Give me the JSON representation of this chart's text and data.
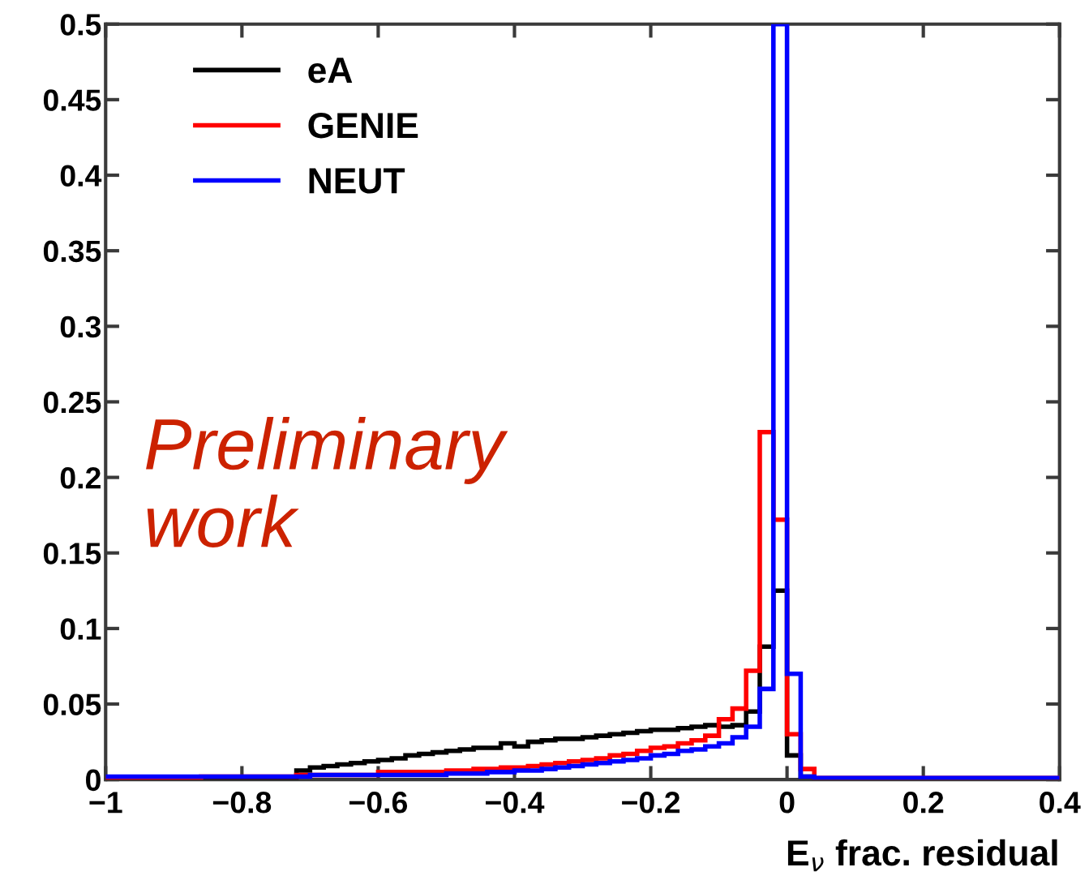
{
  "chart_data": {
    "type": "histogram",
    "xlabel": "E$_{ν}$ frac. residual",
    "bins": [
      -1,
      -0.98,
      -0.96,
      -0.94,
      -0.92,
      -0.9,
      -0.88,
      -0.86,
      -0.84,
      -0.82,
      -0.8,
      -0.78,
      -0.76,
      -0.74,
      -0.72,
      -0.7,
      -0.68,
      -0.66,
      -0.64,
      -0.62,
      -0.6,
      -0.58,
      -0.56,
      -0.54,
      -0.52,
      -0.5,
      -0.48,
      -0.46,
      -0.44,
      -0.42,
      -0.4,
      -0.38,
      -0.36,
      -0.34,
      -0.32,
      -0.3,
      -0.28,
      -0.26,
      -0.24,
      -0.22,
      -0.2,
      -0.18,
      -0.16,
      -0.14,
      -0.12,
      -0.1,
      -0.08,
      -0.06,
      -0.04,
      -0.02,
      0,
      0.02,
      0.04,
      0.06,
      0.08,
      0.1,
      0.12,
      0.14,
      0.16,
      0.18,
      0.2,
      0.22,
      0.24,
      0.26,
      0.28,
      0.3,
      0.32,
      0.34,
      0.36,
      0.38,
      0.4
    ],
    "series": [
      {
        "name": "eA",
        "color": "#000000",
        "values": [
          0.001,
          0.001,
          0.001,
          0.001,
          0.001,
          0.001,
          0.001,
          0.001,
          0.001,
          0.001,
          0.001,
          0.001,
          0.001,
          0.001,
          0.006,
          0.008,
          0.009,
          0.01,
          0.011,
          0.012,
          0.013,
          0.014,
          0.016,
          0.017,
          0.018,
          0.019,
          0.02,
          0.021,
          0.021,
          0.024,
          0.022,
          0.025,
          0.026,
          0.027,
          0.027,
          0.028,
          0.029,
          0.03,
          0.031,
          0.032,
          0.033,
          0.033,
          0.034,
          0.035,
          0.036,
          0.035,
          0.036,
          0.045,
          0.088,
          0.125,
          0.016,
          0.002,
          0,
          0,
          0,
          0,
          0,
          0,
          0,
          0,
          0,
          0,
          0,
          0,
          0,
          0,
          0,
          0,
          0,
          0
        ]
      },
      {
        "name": "GENIE",
        "color": "#ff0000",
        "values": [
          0.001,
          0.001,
          0.001,
          0.001,
          0.001,
          0.001,
          0.001,
          0.002,
          0.002,
          0.002,
          0.002,
          0.002,
          0.002,
          0.002,
          0.003,
          0.003,
          0.003,
          0.003,
          0.003,
          0.003,
          0.005,
          0.005,
          0.005,
          0.005,
          0.005,
          0.006,
          0.006,
          0.007,
          0.007,
          0.008,
          0.008,
          0.009,
          0.01,
          0.011,
          0.012,
          0.013,
          0.014,
          0.016,
          0.017,
          0.019,
          0.021,
          0.022,
          0.024,
          0.026,
          0.029,
          0.04,
          0.047,
          0.072,
          0.23,
          0.172,
          0.03,
          0.007,
          0.001,
          0.001,
          0.001,
          0.001,
          0.001,
          0.001,
          0.001,
          0.001,
          0.001,
          0.001,
          0.001,
          0.001,
          0.001,
          0.001,
          0.001,
          0.001,
          0.001,
          0.001
        ]
      },
      {
        "name": "NEUT",
        "color": "#0000ff",
        "values": [
          0.002,
          0.002,
          0.002,
          0.002,
          0.002,
          0.002,
          0.002,
          0.002,
          0.002,
          0.002,
          0.002,
          0.002,
          0.002,
          0.002,
          0.002,
          0.003,
          0.003,
          0.003,
          0.003,
          0.003,
          0.003,
          0.003,
          0.003,
          0.003,
          0.003,
          0.004,
          0.004,
          0.004,
          0.005,
          0.005,
          0.006,
          0.006,
          0.007,
          0.008,
          0.009,
          0.01,
          0.011,
          0.012,
          0.013,
          0.014,
          0.016,
          0.017,
          0.019,
          0.02,
          0.022,
          0.024,
          0.028,
          0.035,
          0.06,
          0.5,
          0.07,
          0.002,
          0.001,
          0.001,
          0.001,
          0.001,
          0.001,
          0.001,
          0.001,
          0.001,
          0.001,
          0.001,
          0.001,
          0.001,
          0.001,
          0.001,
          0.001,
          0.001,
          0.001,
          0.001
        ]
      }
    ],
    "xlim": [
      -1,
      0.4
    ],
    "ylim": [
      0,
      0.5
    ],
    "xticks": [
      {
        "value": -1,
        "label": "−1"
      },
      {
        "value": -0.8,
        "label": "−0.8"
      },
      {
        "value": -0.6,
        "label": "−0.6"
      },
      {
        "value": -0.4,
        "label": "−0.4"
      },
      {
        "value": -0.2,
        "label": "−0.2"
      },
      0,
      0.2,
      0.4
    ],
    "yticks": [
      0,
      0.05,
      0.1,
      0.15,
      0.2,
      0.25,
      0.3,
      0.35,
      0.4,
      0.45,
      0.5
    ],
    "legend": "top left",
    "grid": false,
    "annotations": [
      "Preliminary\nwork"
    ]
  }
}
